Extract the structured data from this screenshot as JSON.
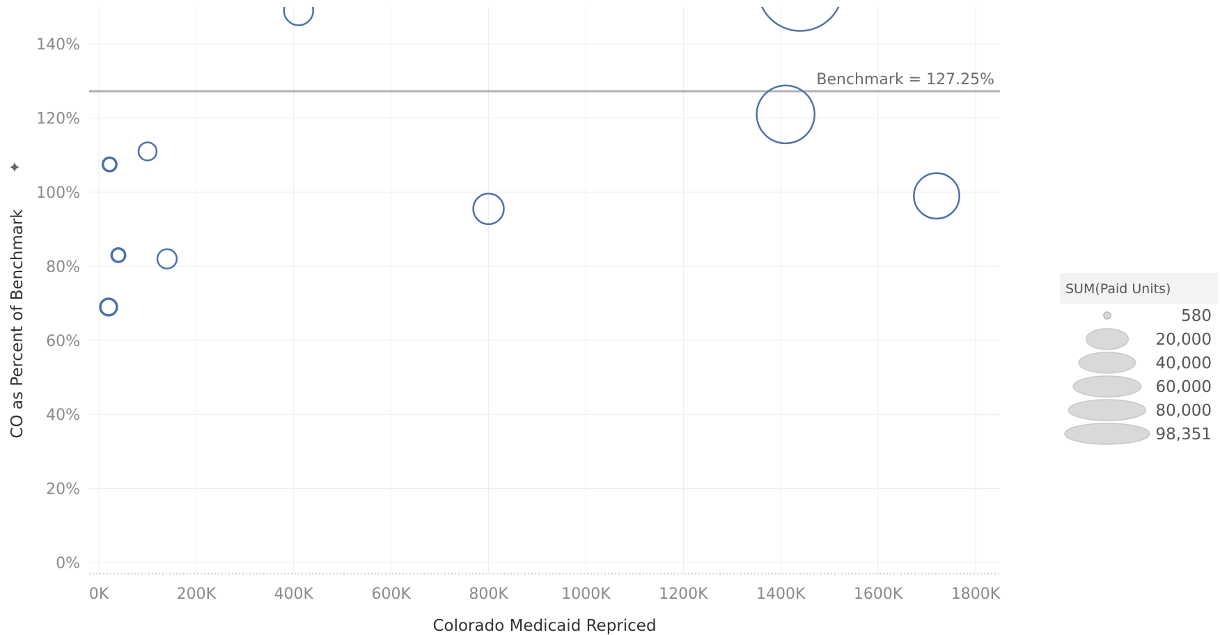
{
  "chart_data": {
    "type": "scatter",
    "xlabel": "Colorado Medicaid Repriced",
    "ylabel": "CO as Percent of Benchmark",
    "xlim": [
      -20000,
      1850000
    ],
    "ylim": [
      -3,
      150
    ],
    "x_ticks": [
      0,
      200000,
      400000,
      600000,
      800000,
      1000000,
      1200000,
      1400000,
      1600000,
      1800000
    ],
    "x_tick_labels": [
      "0K",
      "200K",
      "400K",
      "600K",
      "800K",
      "1000K",
      "1200K",
      "1400K",
      "1600K",
      "1800K"
    ],
    "y_ticks": [
      0,
      20,
      40,
      60,
      80,
      100,
      120,
      140
    ],
    "y_tick_labels": [
      "0%",
      "20%",
      "40%",
      "60%",
      "80%",
      "100%",
      "120%",
      "140%"
    ],
    "grid": true,
    "reference_line": {
      "value": 127.25,
      "label": "Benchmark = 127.25%"
    },
    "points": [
      {
        "x": 22000,
        "y": 107.5,
        "size": 700
      },
      {
        "x": 100000,
        "y": 111,
        "size": 2000
      },
      {
        "x": 40000,
        "y": 83,
        "size": 700
      },
      {
        "x": 140000,
        "y": 82,
        "size": 2500
      },
      {
        "x": 20000,
        "y": 69,
        "size": 1500
      },
      {
        "x": 410000,
        "y": 149,
        "size": 8000
      },
      {
        "x": 800000,
        "y": 95.5,
        "size": 9000
      },
      {
        "x": 1410000,
        "y": 121,
        "size": 42000
      },
      {
        "x": 1440000,
        "y": 155,
        "size": 98351
      },
      {
        "x": 1720000,
        "y": 99,
        "size": 24000
      }
    ],
    "size_legend": {
      "title": "SUM(Paid Units)",
      "values": [
        580,
        20000,
        40000,
        60000,
        80000,
        98351
      ],
      "labels": [
        "580",
        "20,000",
        "40,000",
        "60,000",
        "80,000",
        "98,351"
      ],
      "position": "right"
    },
    "colors": {
      "mark": "#4e72a8",
      "grid": "#ececec",
      "reference": "#b0b0b0",
      "legend_fill": "#d9d9d9"
    }
  }
}
